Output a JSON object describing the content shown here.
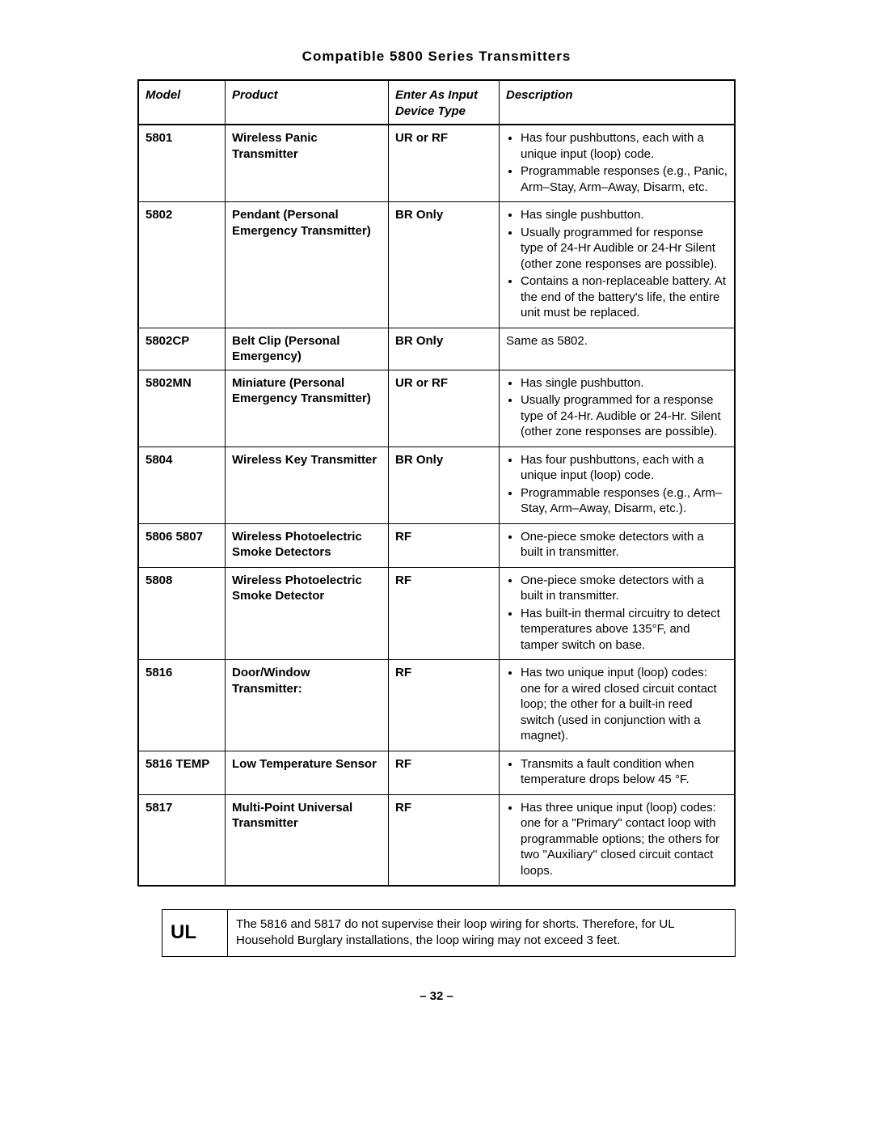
{
  "title": "Compatible 5800 Series Transmitters",
  "headers": {
    "model": "Model",
    "product": "Product",
    "device": "Enter As Input Device Type",
    "desc": "Description"
  },
  "rows": [
    {
      "model": "5801",
      "product": "Wireless Panic Transmitter",
      "device": "UR or RF",
      "desc_type": "list",
      "desc": [
        "Has four pushbuttons, each with a unique input (loop) code.",
        "Programmable responses (e.g., Panic, Arm–Stay, Arm–Away, Disarm, etc."
      ]
    },
    {
      "model": "5802",
      "product": "Pendant (Personal Emergency Transmitter)",
      "device": "BR Only",
      "desc_type": "list",
      "desc": [
        "Has single pushbutton.",
        "Usually programmed for response type of 24-Hr Audible or 24-Hr Silent (other zone responses are possible).",
        "Contains a non-replaceable battery. At the end of the battery's life, the entire unit must be replaced."
      ]
    },
    {
      "model": "5802CP",
      "product": "Belt Clip (Personal Emergency)",
      "device": "BR Only",
      "desc_type": "text",
      "desc": "Same as 5802."
    },
    {
      "model": "5802MN",
      "product": "Miniature (Personal Emergency Transmitter)",
      "device": "UR or RF",
      "desc_type": "list",
      "desc": [
        "Has single pushbutton.",
        "Usually programmed for a response type of 24-Hr. Audible or 24-Hr. Silent (other zone responses are possible)."
      ]
    },
    {
      "model": "5804",
      "product": "Wireless Key Transmitter",
      "device": "BR Only",
      "desc_type": "list",
      "desc": [
        "Has four pushbuttons, each with a unique input (loop) code.",
        "Programmable responses (e.g., Arm–Stay, Arm–Away, Disarm, etc.)."
      ]
    },
    {
      "model": "5806 5807",
      "product": "Wireless Photoelectric Smoke Detectors",
      "device": "RF",
      "desc_type": "list",
      "desc": [
        "One-piece smoke detectors with a built in transmitter."
      ]
    },
    {
      "model": "5808",
      "product": "Wireless Photoelectric Smoke Detector",
      "device": "RF",
      "desc_type": "list",
      "desc": [
        "One-piece smoke detectors with a built in transmitter.",
        "Has built-in thermal circuitry to detect temperatures above 135°F, and tamper switch on base."
      ]
    },
    {
      "model": "5816",
      "product": "Door/Window Transmitter:",
      "device": "RF",
      "desc_type": "list",
      "desc": [
        "Has two unique input (loop) codes: one for a wired closed circuit contact loop; the other for a built-in reed switch (used in conjunction with a magnet)."
      ]
    },
    {
      "model": "5816 TEMP",
      "product": "Low Temperature Sensor",
      "device": "RF",
      "desc_type": "list",
      "desc": [
        "Transmits a fault condition when temperature drops below 45 °F."
      ]
    },
    {
      "model": "5817",
      "product": "Multi-Point Universal Transmitter",
      "device": "RF",
      "desc_type": "list",
      "desc": [
        "Has three unique input (loop) codes: one for a \"Primary\" contact loop with programmable options; the others for two \"Auxiliary\" closed circuit contact loops."
      ]
    }
  ],
  "note": {
    "label": "UL",
    "text": "The 5816 and 5817 do not supervise their loop wiring for shorts. Therefore, for UL Household Burglary installations, the loop wiring may not exceed 3 feet."
  },
  "page": "– 32 –"
}
